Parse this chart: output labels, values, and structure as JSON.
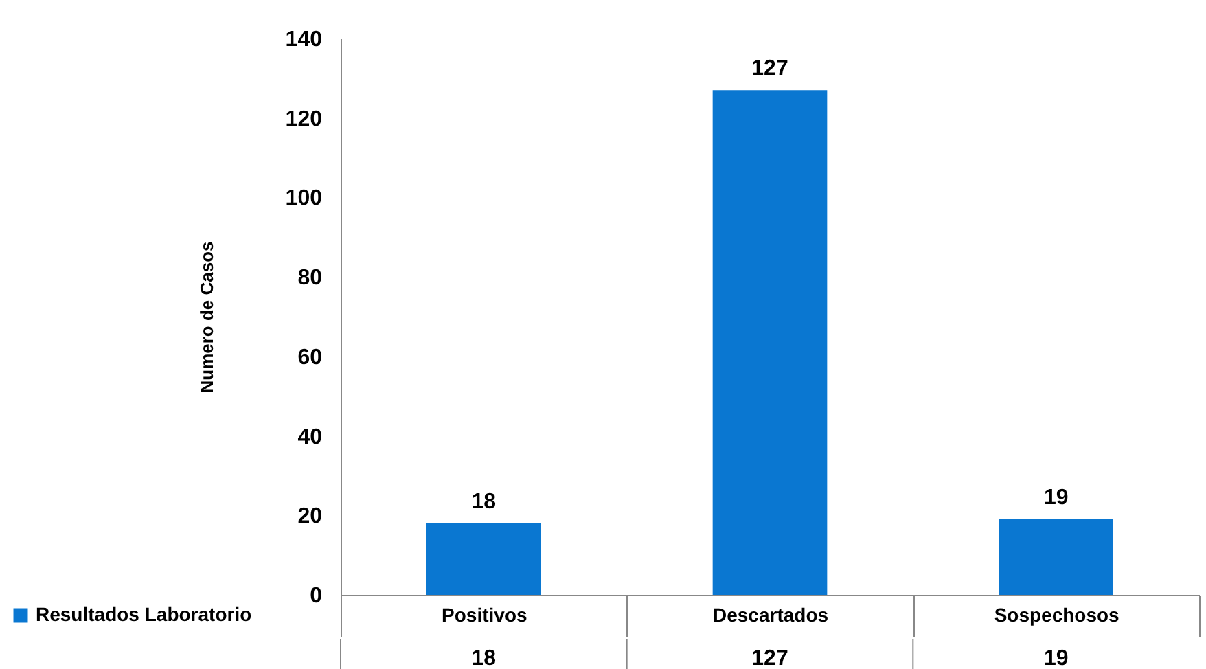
{
  "chart_data": {
    "type": "bar",
    "ylabel": "Numero de Casos",
    "categories": [
      "Positivos",
      "Descartados",
      "Sospechosos"
    ],
    "series": [
      {
        "name": "Resultados Laboratorio",
        "color": "#0a77d1",
        "values": [
          18,
          127,
          19
        ],
        "value_labels": [
          "18",
          "127",
          "19"
        ]
      }
    ],
    "ylim": [
      0,
      140
    ],
    "yticks": [
      0,
      20,
      40,
      60,
      80,
      100,
      120,
      140
    ],
    "grid": false,
    "legend": "bottom left"
  }
}
